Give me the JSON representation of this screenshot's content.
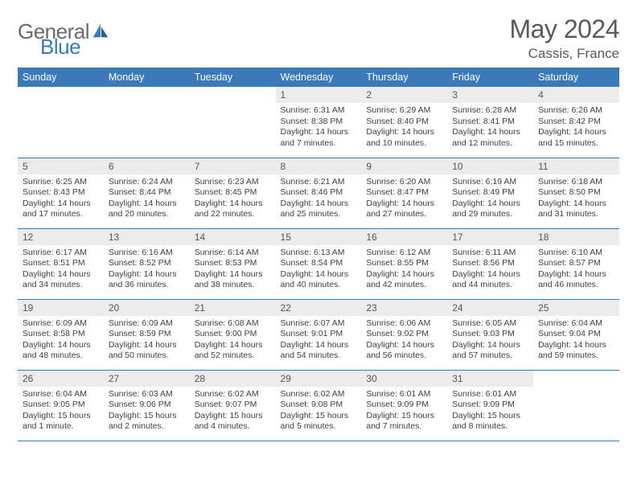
{
  "brand": {
    "part1": "General",
    "part2": "Blue"
  },
  "title": "May 2024",
  "location": "Cassis, France",
  "colors": {
    "header_bg": "#3a7ab8",
    "header_text": "#ffffff",
    "daynum_bg": "#ececec",
    "text": "#3f3f3f",
    "title_text": "#595959",
    "logo_gray": "#6b6b6b",
    "logo_blue": "#3a7ab8",
    "border": "#3a7ab8"
  },
  "weekdays": [
    "Sunday",
    "Monday",
    "Tuesday",
    "Wednesday",
    "Thursday",
    "Friday",
    "Saturday"
  ],
  "weeks": [
    [
      null,
      null,
      null,
      {
        "n": "1",
        "sr": "Sunrise: 6:31 AM",
        "ss": "Sunset: 8:38 PM",
        "dl": "Daylight: 14 hours and 7 minutes."
      },
      {
        "n": "2",
        "sr": "Sunrise: 6:29 AM",
        "ss": "Sunset: 8:40 PM",
        "dl": "Daylight: 14 hours and 10 minutes."
      },
      {
        "n": "3",
        "sr": "Sunrise: 6:28 AM",
        "ss": "Sunset: 8:41 PM",
        "dl": "Daylight: 14 hours and 12 minutes."
      },
      {
        "n": "4",
        "sr": "Sunrise: 6:26 AM",
        "ss": "Sunset: 8:42 PM",
        "dl": "Daylight: 14 hours and 15 minutes."
      }
    ],
    [
      {
        "n": "5",
        "sr": "Sunrise: 6:25 AM",
        "ss": "Sunset: 8:43 PM",
        "dl": "Daylight: 14 hours and 17 minutes."
      },
      {
        "n": "6",
        "sr": "Sunrise: 6:24 AM",
        "ss": "Sunset: 8:44 PM",
        "dl": "Daylight: 14 hours and 20 minutes."
      },
      {
        "n": "7",
        "sr": "Sunrise: 6:23 AM",
        "ss": "Sunset: 8:45 PM",
        "dl": "Daylight: 14 hours and 22 minutes."
      },
      {
        "n": "8",
        "sr": "Sunrise: 6:21 AM",
        "ss": "Sunset: 8:46 PM",
        "dl": "Daylight: 14 hours and 25 minutes."
      },
      {
        "n": "9",
        "sr": "Sunrise: 6:20 AM",
        "ss": "Sunset: 8:47 PM",
        "dl": "Daylight: 14 hours and 27 minutes."
      },
      {
        "n": "10",
        "sr": "Sunrise: 6:19 AM",
        "ss": "Sunset: 8:49 PM",
        "dl": "Daylight: 14 hours and 29 minutes."
      },
      {
        "n": "11",
        "sr": "Sunrise: 6:18 AM",
        "ss": "Sunset: 8:50 PM",
        "dl": "Daylight: 14 hours and 31 minutes."
      }
    ],
    [
      {
        "n": "12",
        "sr": "Sunrise: 6:17 AM",
        "ss": "Sunset: 8:51 PM",
        "dl": "Daylight: 14 hours and 34 minutes."
      },
      {
        "n": "13",
        "sr": "Sunrise: 6:16 AM",
        "ss": "Sunset: 8:52 PM",
        "dl": "Daylight: 14 hours and 36 minutes."
      },
      {
        "n": "14",
        "sr": "Sunrise: 6:14 AM",
        "ss": "Sunset: 8:53 PM",
        "dl": "Daylight: 14 hours and 38 minutes."
      },
      {
        "n": "15",
        "sr": "Sunrise: 6:13 AM",
        "ss": "Sunset: 8:54 PM",
        "dl": "Daylight: 14 hours and 40 minutes."
      },
      {
        "n": "16",
        "sr": "Sunrise: 6:12 AM",
        "ss": "Sunset: 8:55 PM",
        "dl": "Daylight: 14 hours and 42 minutes."
      },
      {
        "n": "17",
        "sr": "Sunrise: 6:11 AM",
        "ss": "Sunset: 8:56 PM",
        "dl": "Daylight: 14 hours and 44 minutes."
      },
      {
        "n": "18",
        "sr": "Sunrise: 6:10 AM",
        "ss": "Sunset: 8:57 PM",
        "dl": "Daylight: 14 hours and 46 minutes."
      }
    ],
    [
      {
        "n": "19",
        "sr": "Sunrise: 6:09 AM",
        "ss": "Sunset: 8:58 PM",
        "dl": "Daylight: 14 hours and 48 minutes."
      },
      {
        "n": "20",
        "sr": "Sunrise: 6:09 AM",
        "ss": "Sunset: 8:59 PM",
        "dl": "Daylight: 14 hours and 50 minutes."
      },
      {
        "n": "21",
        "sr": "Sunrise: 6:08 AM",
        "ss": "Sunset: 9:00 PM",
        "dl": "Daylight: 14 hours and 52 minutes."
      },
      {
        "n": "22",
        "sr": "Sunrise: 6:07 AM",
        "ss": "Sunset: 9:01 PM",
        "dl": "Daylight: 14 hours and 54 minutes."
      },
      {
        "n": "23",
        "sr": "Sunrise: 6:06 AM",
        "ss": "Sunset: 9:02 PM",
        "dl": "Daylight: 14 hours and 56 minutes."
      },
      {
        "n": "24",
        "sr": "Sunrise: 6:05 AM",
        "ss": "Sunset: 9:03 PM",
        "dl": "Daylight: 14 hours and 57 minutes."
      },
      {
        "n": "25",
        "sr": "Sunrise: 6:04 AM",
        "ss": "Sunset: 9:04 PM",
        "dl": "Daylight: 14 hours and 59 minutes."
      }
    ],
    [
      {
        "n": "26",
        "sr": "Sunrise: 6:04 AM",
        "ss": "Sunset: 9:05 PM",
        "dl": "Daylight: 15 hours and 1 minute."
      },
      {
        "n": "27",
        "sr": "Sunrise: 6:03 AM",
        "ss": "Sunset: 9:06 PM",
        "dl": "Daylight: 15 hours and 2 minutes."
      },
      {
        "n": "28",
        "sr": "Sunrise: 6:02 AM",
        "ss": "Sunset: 9:07 PM",
        "dl": "Daylight: 15 hours and 4 minutes."
      },
      {
        "n": "29",
        "sr": "Sunrise: 6:02 AM",
        "ss": "Sunset: 9:08 PM",
        "dl": "Daylight: 15 hours and 5 minutes."
      },
      {
        "n": "30",
        "sr": "Sunrise: 6:01 AM",
        "ss": "Sunset: 9:09 PM",
        "dl": "Daylight: 15 hours and 7 minutes."
      },
      {
        "n": "31",
        "sr": "Sunrise: 6:01 AM",
        "ss": "Sunset: 9:09 PM",
        "dl": "Daylight: 15 hours and 8 minutes."
      },
      null
    ]
  ]
}
